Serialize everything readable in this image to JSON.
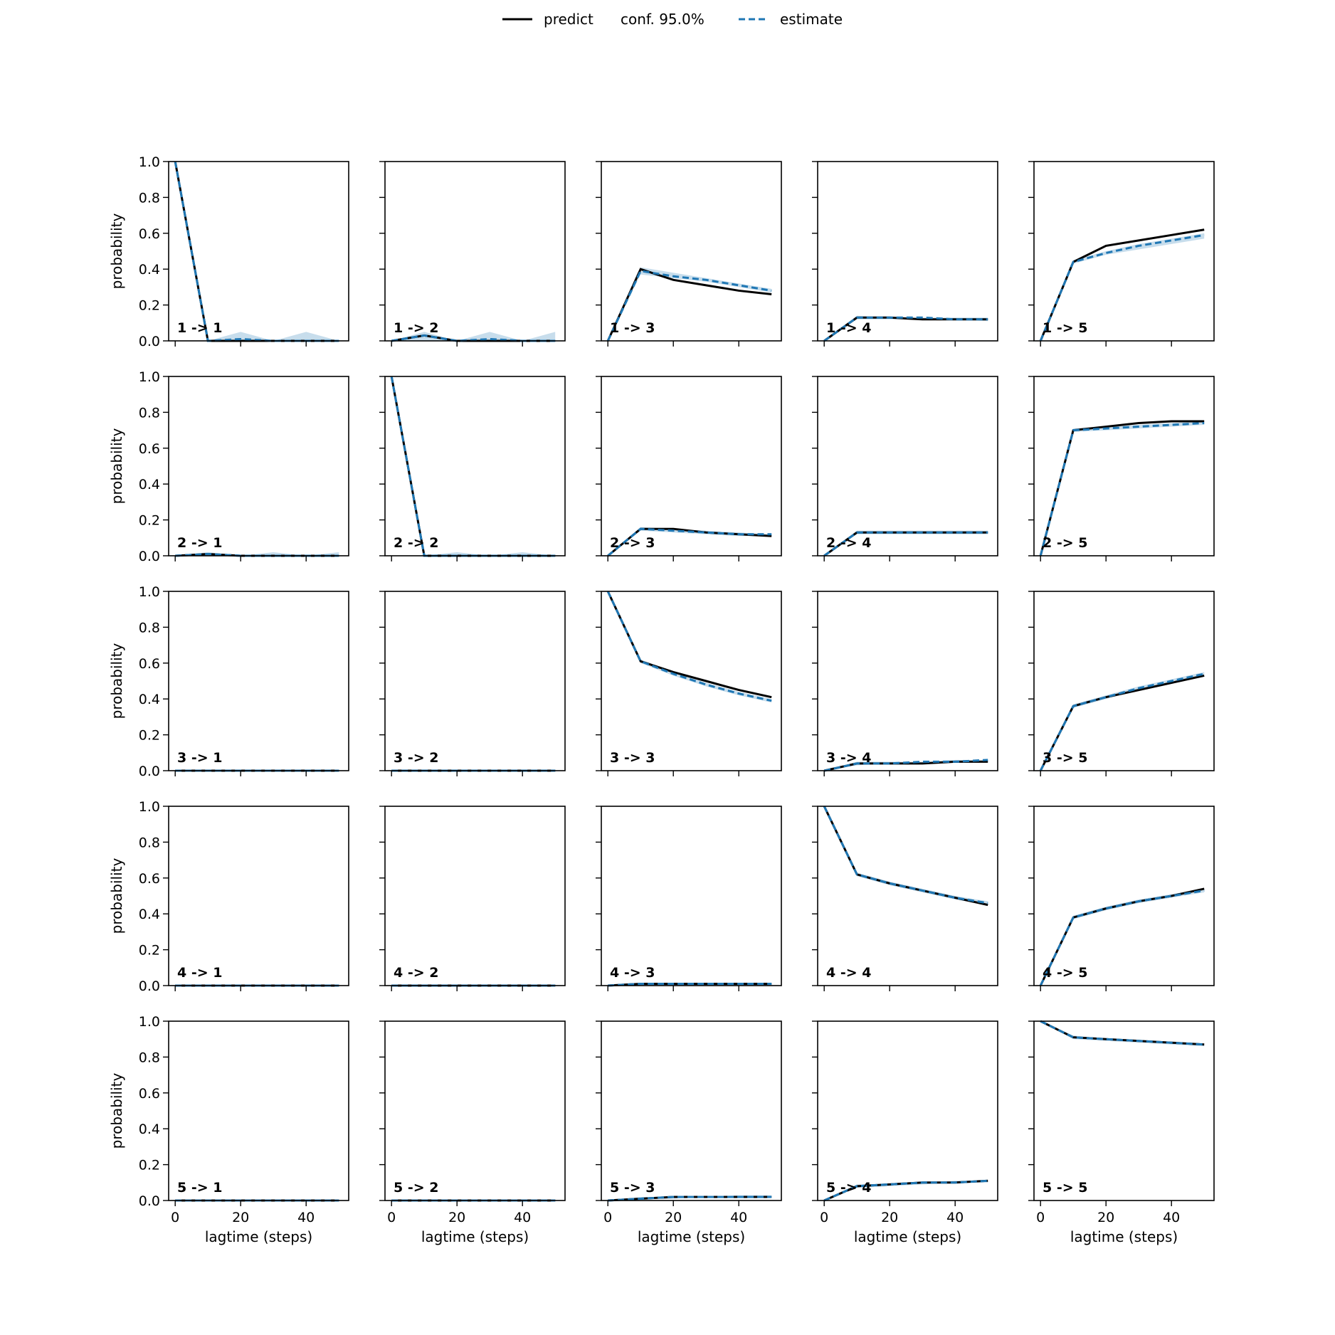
{
  "legend": {
    "predict": "predict",
    "conf": "conf. 95.0%",
    "estimate": "estimate"
  },
  "colors": {
    "predict": "#000000",
    "estimate": "#1f77b4",
    "conf_band": "#1f77b4"
  },
  "chart_data": {
    "type": "line",
    "layout": "5x5 grid of subplots",
    "x": [
      0,
      10,
      20,
      30,
      40,
      50
    ],
    "xlim": [
      -2,
      53
    ],
    "ylim": [
      0,
      1
    ],
    "xticks": [
      "0",
      "20",
      "40"
    ],
    "xtick_values": [
      0,
      20,
      40
    ],
    "yticks": [
      "0.0",
      "0.2",
      "0.4",
      "0.6",
      "0.8",
      "1.0"
    ],
    "ytick_values": [
      0,
      0.2,
      0.4,
      0.6,
      0.8,
      1.0
    ],
    "xlabel": "lagtime (steps)",
    "ylabel": "probability",
    "legend_position": "top-center",
    "panels": [
      {
        "label": "1 -> 1",
        "predict": [
          1.0,
          0.0,
          0.0,
          0.0,
          0.0,
          0.0
        ],
        "estimate": [
          1.0,
          0.0,
          0.01,
          0.0,
          0.0,
          0.0
        ],
        "conf_upper": [
          1.0,
          0.0,
          0.05,
          0.0,
          0.05,
          0.0
        ],
        "conf_lower": [
          1.0,
          0.0,
          0.0,
          0.0,
          0.0,
          0.0
        ]
      },
      {
        "label": "1 -> 2",
        "predict": [
          0.0,
          0.03,
          0.0,
          0.0,
          0.0,
          0.0
        ],
        "estimate": [
          0.0,
          0.03,
          0.0,
          0.01,
          0.0,
          0.0
        ],
        "conf_upper": [
          0.0,
          0.05,
          0.0,
          0.05,
          0.0,
          0.05
        ],
        "conf_lower": [
          0.0,
          0.0,
          0.0,
          0.0,
          0.0,
          0.0
        ]
      },
      {
        "label": "1 -> 3",
        "predict": [
          0.0,
          0.4,
          0.34,
          0.31,
          0.28,
          0.26
        ],
        "estimate": [
          0.0,
          0.39,
          0.36,
          0.34,
          0.31,
          0.28
        ],
        "conf_upper": [
          0.0,
          0.41,
          0.38,
          0.35,
          0.32,
          0.29
        ],
        "conf_lower": [
          0.0,
          0.37,
          0.35,
          0.33,
          0.3,
          0.27
        ]
      },
      {
        "label": "1 -> 4",
        "predict": [
          0.0,
          0.13,
          0.13,
          0.12,
          0.12,
          0.12
        ],
        "estimate": [
          0.0,
          0.13,
          0.13,
          0.13,
          0.12,
          0.12
        ],
        "conf_upper": [
          0.0,
          0.14,
          0.13,
          0.13,
          0.13,
          0.13
        ],
        "conf_lower": [
          0.0,
          0.12,
          0.12,
          0.12,
          0.12,
          0.11
        ]
      },
      {
        "label": "1 -> 5",
        "predict": [
          0.0,
          0.44,
          0.53,
          0.56,
          0.59,
          0.62
        ],
        "estimate": [
          0.0,
          0.44,
          0.49,
          0.53,
          0.56,
          0.59
        ],
        "conf_upper": [
          0.0,
          0.45,
          0.5,
          0.54,
          0.57,
          0.6
        ],
        "conf_lower": [
          0.0,
          0.43,
          0.48,
          0.51,
          0.54,
          0.57
        ]
      },
      {
        "label": "2 -> 1",
        "predict": [
          0.0,
          0.01,
          0.0,
          0.0,
          0.0,
          0.0
        ],
        "estimate": [
          0.0,
          0.01,
          0.0,
          0.0,
          0.0,
          0.0
        ],
        "conf_upper": [
          0.0,
          0.02,
          0.0,
          0.02,
          0.0,
          0.02
        ],
        "conf_lower": [
          0.0,
          0.0,
          0.0,
          0.0,
          0.0,
          0.0
        ]
      },
      {
        "label": "2 -> 2",
        "predict": [
          1.0,
          0.0,
          0.0,
          0.0,
          0.0,
          0.0
        ],
        "estimate": [
          1.0,
          0.0,
          0.0,
          0.0,
          0.0,
          0.0
        ],
        "conf_upper": [
          1.0,
          0.0,
          0.02,
          0.0,
          0.02,
          0.0
        ],
        "conf_lower": [
          1.0,
          0.0,
          0.0,
          0.0,
          0.0,
          0.0
        ]
      },
      {
        "label": "2 -> 3",
        "predict": [
          0.0,
          0.15,
          0.15,
          0.13,
          0.12,
          0.11
        ],
        "estimate": [
          0.0,
          0.15,
          0.14,
          0.13,
          0.12,
          0.12
        ],
        "conf_upper": [
          0.0,
          0.16,
          0.15,
          0.14,
          0.13,
          0.12
        ],
        "conf_lower": [
          0.0,
          0.14,
          0.13,
          0.12,
          0.11,
          0.11
        ]
      },
      {
        "label": "2 -> 4",
        "predict": [
          0.0,
          0.13,
          0.13,
          0.13,
          0.13,
          0.13
        ],
        "estimate": [
          0.0,
          0.13,
          0.13,
          0.13,
          0.13,
          0.13
        ],
        "conf_upper": [
          0.0,
          0.14,
          0.14,
          0.14,
          0.14,
          0.14
        ],
        "conf_lower": [
          0.0,
          0.12,
          0.12,
          0.12,
          0.12,
          0.12
        ]
      },
      {
        "label": "2 -> 5",
        "predict": [
          0.0,
          0.7,
          0.72,
          0.74,
          0.75,
          0.75
        ],
        "estimate": [
          0.0,
          0.7,
          0.71,
          0.72,
          0.73,
          0.74
        ],
        "conf_upper": [
          0.0,
          0.71,
          0.72,
          0.73,
          0.74,
          0.75
        ],
        "conf_lower": [
          0.0,
          0.69,
          0.7,
          0.71,
          0.72,
          0.73
        ]
      },
      {
        "label": "3 -> 1",
        "predict": [
          0,
          0,
          0,
          0,
          0,
          0
        ],
        "estimate": [
          0,
          0,
          0,
          0,
          0,
          0
        ],
        "conf_upper": [
          0,
          0,
          0,
          0,
          0,
          0
        ],
        "conf_lower": [
          0,
          0,
          0,
          0,
          0,
          0
        ]
      },
      {
        "label": "3 -> 2",
        "predict": [
          0,
          0,
          0,
          0,
          0,
          0
        ],
        "estimate": [
          0,
          0,
          0,
          0,
          0,
          0
        ],
        "conf_upper": [
          0,
          0,
          0,
          0,
          0,
          0
        ],
        "conf_lower": [
          0,
          0,
          0,
          0,
          0,
          0
        ]
      },
      {
        "label": "3 -> 3",
        "predict": [
          1.0,
          0.61,
          0.55,
          0.5,
          0.45,
          0.41
        ],
        "estimate": [
          1.0,
          0.61,
          0.54,
          0.48,
          0.43,
          0.39
        ],
        "conf_upper": [
          1.0,
          0.62,
          0.55,
          0.49,
          0.44,
          0.4
        ],
        "conf_lower": [
          1.0,
          0.6,
          0.53,
          0.47,
          0.42,
          0.38
        ]
      },
      {
        "label": "3 -> 4",
        "predict": [
          0.0,
          0.04,
          0.04,
          0.04,
          0.05,
          0.05
        ],
        "estimate": [
          0.0,
          0.04,
          0.04,
          0.05,
          0.05,
          0.06
        ],
        "conf_upper": [
          0.0,
          0.05,
          0.05,
          0.05,
          0.06,
          0.06
        ],
        "conf_lower": [
          0.0,
          0.03,
          0.04,
          0.04,
          0.05,
          0.05
        ]
      },
      {
        "label": "3 -> 5",
        "predict": [
          0.0,
          0.36,
          0.41,
          0.45,
          0.49,
          0.53
        ],
        "estimate": [
          0.0,
          0.36,
          0.41,
          0.46,
          0.5,
          0.54
        ],
        "conf_upper": [
          0.0,
          0.37,
          0.42,
          0.47,
          0.51,
          0.55
        ],
        "conf_lower": [
          0.0,
          0.35,
          0.4,
          0.45,
          0.49,
          0.53
        ]
      },
      {
        "label": "4 -> 1",
        "predict": [
          0,
          0,
          0,
          0,
          0,
          0
        ],
        "estimate": [
          0,
          0,
          0,
          0,
          0,
          0
        ],
        "conf_upper": [
          0,
          0,
          0,
          0,
          0,
          0
        ],
        "conf_lower": [
          0,
          0,
          0,
          0,
          0,
          0
        ]
      },
      {
        "label": "4 -> 2",
        "predict": [
          0,
          0,
          0,
          0,
          0,
          0
        ],
        "estimate": [
          0,
          0,
          0,
          0,
          0,
          0
        ],
        "conf_upper": [
          0,
          0,
          0,
          0,
          0,
          0
        ],
        "conf_lower": [
          0,
          0,
          0,
          0,
          0,
          0
        ]
      },
      {
        "label": "4 -> 3",
        "predict": [
          0.0,
          0.01,
          0.01,
          0.01,
          0.01,
          0.01
        ],
        "estimate": [
          0.0,
          0.01,
          0.01,
          0.01,
          0.01,
          0.01
        ],
        "conf_upper": [
          0.0,
          0.01,
          0.01,
          0.01,
          0.01,
          0.01
        ],
        "conf_lower": [
          0.0,
          0.0,
          0.0,
          0.0,
          0.0,
          0.0
        ]
      },
      {
        "label": "4 -> 4",
        "predict": [
          1.0,
          0.62,
          0.57,
          0.53,
          0.49,
          0.45
        ],
        "estimate": [
          1.0,
          0.62,
          0.57,
          0.53,
          0.49,
          0.46
        ],
        "conf_upper": [
          1.0,
          0.63,
          0.58,
          0.54,
          0.5,
          0.47
        ],
        "conf_lower": [
          1.0,
          0.61,
          0.56,
          0.52,
          0.48,
          0.45
        ]
      },
      {
        "label": "4 -> 5",
        "predict": [
          0.0,
          0.38,
          0.43,
          0.47,
          0.5,
          0.54
        ],
        "estimate": [
          0.0,
          0.38,
          0.43,
          0.47,
          0.5,
          0.53
        ],
        "conf_upper": [
          0.0,
          0.39,
          0.44,
          0.48,
          0.51,
          0.54
        ],
        "conf_lower": [
          0.0,
          0.37,
          0.42,
          0.46,
          0.49,
          0.52
        ]
      },
      {
        "label": "5 -> 1",
        "predict": [
          0,
          0,
          0,
          0,
          0,
          0
        ],
        "estimate": [
          0,
          0,
          0,
          0,
          0,
          0
        ],
        "conf_upper": [
          0,
          0,
          0,
          0,
          0,
          0
        ],
        "conf_lower": [
          0,
          0,
          0,
          0,
          0,
          0
        ]
      },
      {
        "label": "5 -> 2",
        "predict": [
          0,
          0,
          0,
          0,
          0,
          0
        ],
        "estimate": [
          0,
          0,
          0,
          0,
          0,
          0
        ],
        "conf_upper": [
          0,
          0,
          0,
          0,
          0,
          0
        ],
        "conf_lower": [
          0,
          0,
          0,
          0,
          0,
          0
        ]
      },
      {
        "label": "5 -> 3",
        "predict": [
          0.0,
          0.01,
          0.02,
          0.02,
          0.02,
          0.02
        ],
        "estimate": [
          0.0,
          0.01,
          0.02,
          0.02,
          0.02,
          0.02
        ],
        "conf_upper": [
          0.0,
          0.02,
          0.02,
          0.02,
          0.03,
          0.03
        ],
        "conf_lower": [
          0.0,
          0.01,
          0.01,
          0.02,
          0.02,
          0.02
        ]
      },
      {
        "label": "5 -> 4",
        "predict": [
          0.0,
          0.08,
          0.09,
          0.1,
          0.1,
          0.11
        ],
        "estimate": [
          0.0,
          0.08,
          0.09,
          0.1,
          0.1,
          0.11
        ],
        "conf_upper": [
          0.0,
          0.09,
          0.09,
          0.1,
          0.11,
          0.11
        ],
        "conf_lower": [
          0.0,
          0.07,
          0.08,
          0.09,
          0.1,
          0.1
        ]
      },
      {
        "label": "5 -> 5",
        "predict": [
          1.0,
          0.91,
          0.9,
          0.89,
          0.88,
          0.87
        ],
        "estimate": [
          1.0,
          0.91,
          0.9,
          0.89,
          0.88,
          0.87
        ],
        "conf_upper": [
          1.0,
          0.92,
          0.9,
          0.89,
          0.88,
          0.87
        ],
        "conf_lower": [
          1.0,
          0.9,
          0.89,
          0.88,
          0.87,
          0.86
        ]
      }
    ]
  }
}
